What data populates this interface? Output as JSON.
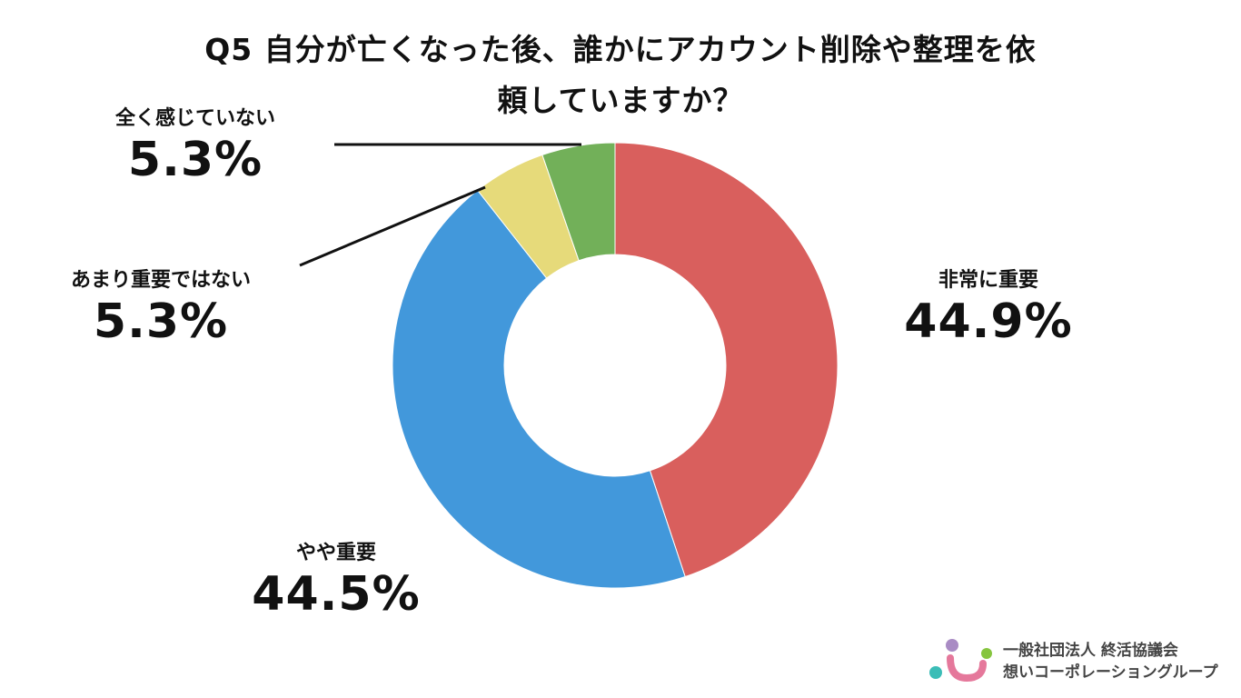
{
  "chart_data": {
    "type": "pie",
    "variant": "donut",
    "title": "Q5 自分が亡くなった後、誰かにアカウント削除や整理を依頼していますか？",
    "title_lines": [
      "Q5 自分が亡くなった後、誰かにアカウント削除や整理を依",
      "頼していますか？"
    ],
    "categories": [
      "非常に重要",
      "やや重要",
      "あまり重要ではない",
      "全く感じていない"
    ],
    "values": [
      44.9,
      44.5,
      5.3,
      5.3
    ],
    "value_labels": [
      "44.9%",
      "44.5%",
      "5.3%",
      "5.3%"
    ],
    "colors": [
      "#d95f5d",
      "#4298db",
      "#e6da7a",
      "#72b059"
    ],
    "legend": "none"
  },
  "footer": {
    "org_line1": "一般社団法人 終活協議会",
    "org_line2": "想いコーポレーショングループ",
    "logo_icon": "smile-logo-icon"
  }
}
